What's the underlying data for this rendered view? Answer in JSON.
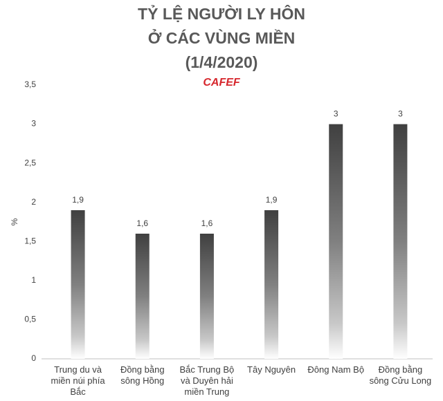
{
  "chart_data": {
    "type": "bar",
    "title": [
      "TỶ LỆ NGƯỜI LY HÔN",
      "Ở CÁC VÙNG MIỀN",
      "(1/4/2020)"
    ],
    "logo": "CAFEF",
    "y_label": "%",
    "categories": [
      "Trung du và miền núi phía Bắc",
      "Đồng bằng sông Hồng",
      "Bắc Trung Bộ và Duyên hải miền Trung",
      "Tây Nguyên",
      "Đông Nam Bộ",
      "Đồng bằng sông Cửu Long"
    ],
    "values": [
      1.9,
      1.6,
      1.6,
      1.9,
      3,
      3
    ],
    "value_labels": [
      "1,9",
      "1,6",
      "1,6",
      "1,9",
      "3",
      "3"
    ],
    "color": "#404040",
    "ylim": [
      0,
      3.5
    ],
    "yticks": [
      0,
      {
        "value": 0.5,
        "label": "0,5"
      },
      1,
      {
        "value": 1.5,
        "label": "1,5"
      },
      2,
      {
        "value": 2.5,
        "label": "2,5"
      },
      3,
      {
        "value": 3.5,
        "label": "3,5"
      }
    ],
    "grid": false
  }
}
